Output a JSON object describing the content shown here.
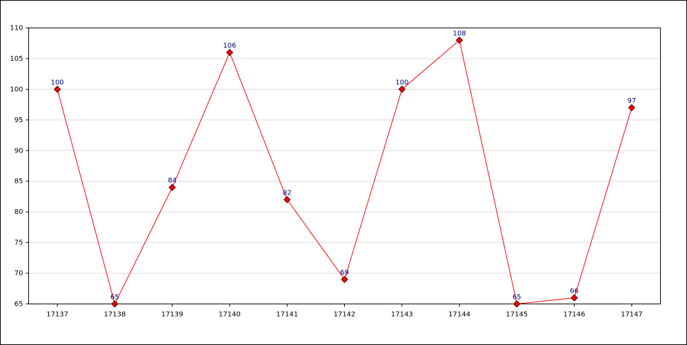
{
  "chart_data": {
    "type": "line",
    "categories": [
      "17137",
      "17138",
      "17139",
      "17140",
      "17141",
      "17142",
      "17143",
      "17144",
      "17145",
      "17146",
      "17147"
    ],
    "values": [
      100,
      65,
      84,
      106,
      82,
      69,
      100,
      108,
      65,
      66,
      97
    ],
    "color": "#ff0000",
    "label_color": "#000080",
    "ylim": [
      65,
      110
    ],
    "yticks": [
      65,
      70,
      75,
      80,
      85,
      90,
      95,
      100,
      105,
      110
    ],
    "grid": true
  }
}
